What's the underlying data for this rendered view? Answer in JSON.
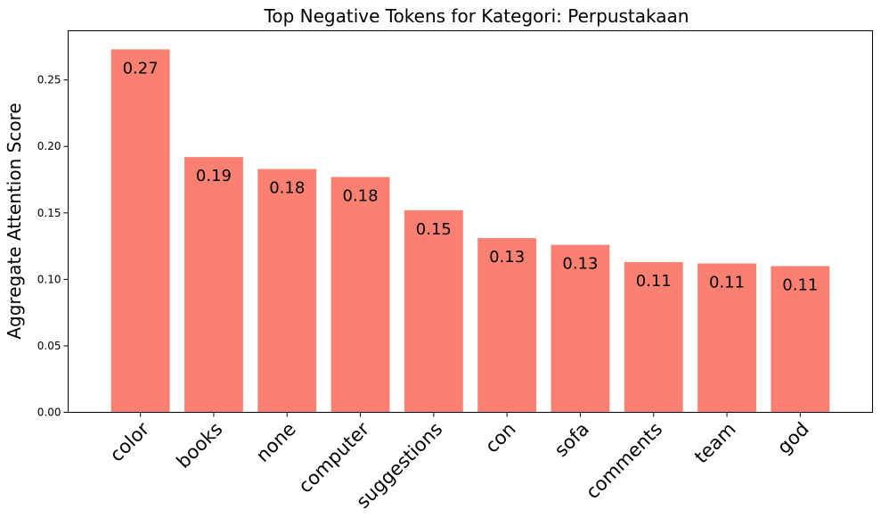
{
  "chart_data": {
    "type": "bar",
    "title": "Top Negative Tokens for Kategori: Perpustakaan",
    "xlabel": "",
    "ylabel": "Aggregate Attention Score",
    "categories": [
      "color",
      "books",
      "none",
      "computer",
      "suggestions",
      "con",
      "sofa",
      "comments",
      "team",
      "god"
    ],
    "values": [
      0.273,
      0.192,
      0.183,
      0.177,
      0.152,
      0.131,
      0.126,
      0.113,
      0.112,
      0.11
    ],
    "data_labels": [
      "0.27",
      "0.19",
      "0.18",
      "0.18",
      "0.15",
      "0.13",
      "0.13",
      "0.11",
      "0.11",
      "0.11"
    ],
    "ylim": [
      0,
      0.287
    ],
    "yticks": [
      0.0,
      0.05,
      0.1,
      0.15,
      0.2,
      0.25
    ],
    "ytick_labels": [
      "0.00",
      "0.05",
      "0.10",
      "0.15",
      "0.20",
      "0.25"
    ],
    "bar_color": "#FA8072",
    "grid": false,
    "legend": "none"
  }
}
